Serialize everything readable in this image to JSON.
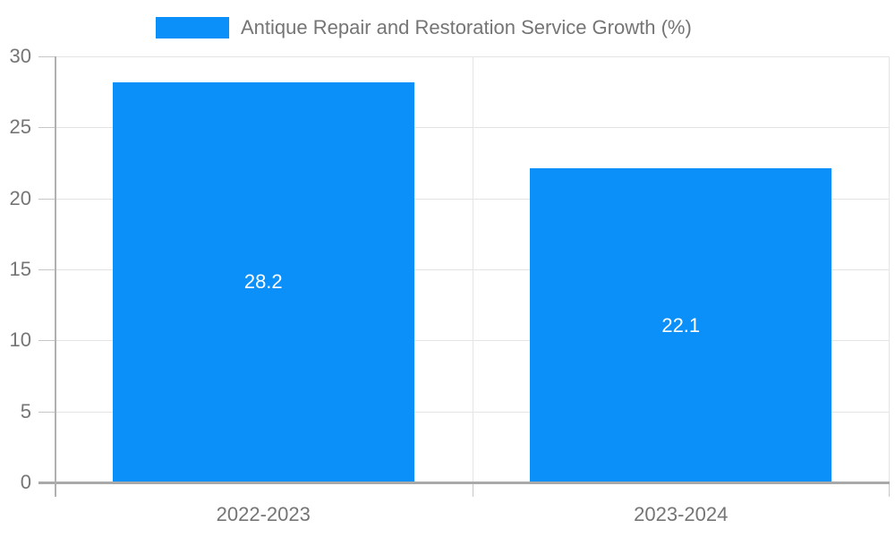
{
  "legend": {
    "position": "top"
  },
  "chart_data": {
    "type": "bar",
    "title": "Antique Repair and Restoration Service Growth (%)",
    "categories": [
      "2022-2023",
      "2023-2024"
    ],
    "series": [
      {
        "name": "Antique Repair and Restoration Service Growth (%)",
        "values": [
          28.2,
          22.1
        ]
      }
    ],
    "data_labels": [
      "28.2",
      "22.1"
    ],
    "xlabel": "",
    "ylabel": "",
    "ylim": [
      0,
      30
    ],
    "yticks": [
      0,
      5,
      10,
      15,
      20,
      25,
      30
    ],
    "grid": true,
    "legend_position": "top",
    "colors": {
      "bar": "#0b90f9",
      "label_text": "#757575",
      "value_text": "#ffffff",
      "gridline": "#e4e4e4",
      "x_axis_line": "#a9a9a9",
      "y_axis_line": "#b0b0b0",
      "tick": "#c6c6c6"
    }
  }
}
